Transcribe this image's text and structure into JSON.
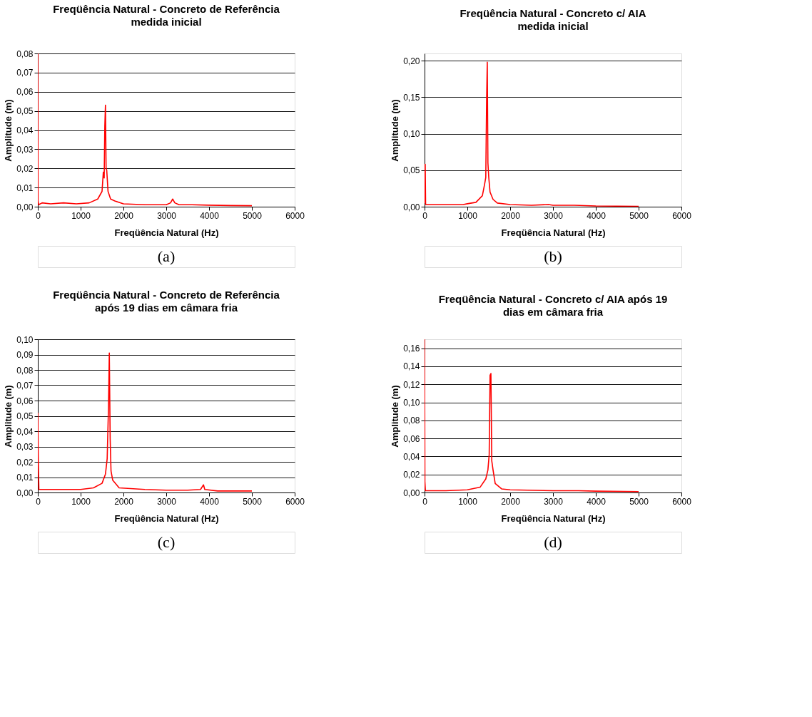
{
  "chart_data": [
    {
      "type": "line",
      "title": "Freqüência Natural  - Concreto de Referência",
      "subtitle": "medida inicial",
      "xlabel": "Freqüência Natural (Hz)",
      "ylabel": "Amplitude (m)",
      "annotations": [
        "(a)"
      ],
      "grid": "y",
      "xlim": [
        0,
        6000
      ],
      "xticks": [
        0,
        1000,
        2000,
        3000,
        4000,
        5000,
        6000
      ],
      "ylim": [
        0,
        0.08
      ],
      "yticks": [
        {
          "value": 0,
          "label": "0,00"
        },
        {
          "value": 0.01,
          "label": "0,01"
        },
        {
          "value": 0.02,
          "label": "0,02"
        },
        {
          "value": 0.03,
          "label": "0,03"
        },
        {
          "value": 0.04,
          "label": "0,04"
        },
        {
          "value": 0.05,
          "label": "0,05"
        },
        {
          "value": 0.06,
          "label": "0,06"
        },
        {
          "value": 0.07,
          "label": "0,07"
        },
        {
          "value": 0.08,
          "label": "0,08"
        }
      ],
      "series": [
        {
          "color": "#ff0000",
          "x": [
            0,
            5,
            20,
            100,
            300,
            600,
            900,
            1200,
            1400,
            1500,
            1530,
            1550,
            1565,
            1580,
            1595,
            1610,
            1640,
            1700,
            1800,
            2000,
            2500,
            3000,
            3100,
            3150,
            3200,
            3300,
            3600,
            4000,
            4500,
            5000
          ],
          "values": [
            0.08,
            0.003,
            0.001,
            0.002,
            0.0015,
            0.002,
            0.0015,
            0.002,
            0.004,
            0.008,
            0.018,
            0.015,
            0.042,
            0.053,
            0.02,
            0.019,
            0.008,
            0.004,
            0.003,
            0.0015,
            0.001,
            0.001,
            0.002,
            0.004,
            0.002,
            0.001,
            0.001,
            0.0008,
            0.0006,
            0.0005
          ]
        }
      ]
    },
    {
      "type": "line",
      "title": "Freqüência Natural  - Concreto c/ AIA",
      "subtitle": "medida inicial",
      "xlabel": "Freqüência Natural (Hz)",
      "ylabel": "Amplitude (m)",
      "annotations": [
        "(b)"
      ],
      "grid": "y",
      "xlim": [
        0,
        6000
      ],
      "xticks": [
        0,
        1000,
        2000,
        3000,
        4000,
        5000,
        6000
      ],
      "ylim": [
        0,
        0.21
      ],
      "yticks": [
        {
          "value": 0,
          "label": "0,00"
        },
        {
          "value": 0.05,
          "label": "0,05"
        },
        {
          "value": 0.1,
          "label": "0,10"
        },
        {
          "value": 0.15,
          "label": "0,15"
        },
        {
          "value": 0.2,
          "label": "0,20"
        }
      ],
      "series": [
        {
          "color": "#ff0000",
          "x": [
            0,
            15,
            25,
            300,
            900,
            1000,
            1200,
            1350,
            1400,
            1430,
            1450,
            1465,
            1480,
            1500,
            1530,
            1600,
            1700,
            2000,
            2500,
            2900,
            3000,
            3500,
            4000,
            4500,
            5000
          ],
          "values": [
            0.005,
            0.058,
            0.003,
            0.003,
            0.003,
            0.004,
            0.006,
            0.015,
            0.03,
            0.04,
            0.147,
            0.198,
            0.06,
            0.04,
            0.02,
            0.01,
            0.005,
            0.003,
            0.002,
            0.003,
            0.002,
            0.002,
            0.001,
            0.0008,
            0.0005
          ]
        }
      ]
    },
    {
      "type": "line",
      "title": "Freqüência Natural  - Concreto de Referência",
      "subtitle": "após 19 dias em câmara fria",
      "xlabel": "Freqüência Natural (Hz)",
      "ylabel": "Amplitude (m)",
      "annotations": [
        "(c)"
      ],
      "grid": "y",
      "xlim": [
        0,
        6000
      ],
      "xticks": [
        0,
        1000,
        2000,
        3000,
        4000,
        5000,
        6000
      ],
      "ylim": [
        0,
        0.1
      ],
      "yticks": [
        {
          "value": 0,
          "label": "0,00"
        },
        {
          "value": 0.01,
          "label": "0,01"
        },
        {
          "value": 0.02,
          "label": "0,02"
        },
        {
          "value": 0.03,
          "label": "0,03"
        },
        {
          "value": 0.04,
          "label": "0,04"
        },
        {
          "value": 0.05,
          "label": "0,05"
        },
        {
          "value": 0.06,
          "label": "0,06"
        },
        {
          "value": 0.07,
          "label": "0,07"
        },
        {
          "value": 0.08,
          "label": "0,08"
        },
        {
          "value": 0.09,
          "label": "0,09"
        },
        {
          "value": 0.1,
          "label": "0,10"
        }
      ],
      "series": [
        {
          "color": "#ff0000",
          "x": [
            0,
            10,
            25,
            500,
            1000,
            1300,
            1500,
            1580,
            1620,
            1650,
            1670,
            1690,
            1710,
            1750,
            1900,
            2500,
            3000,
            3500,
            3800,
            3870,
            3900,
            4200,
            5000
          ],
          "values": [
            0.052,
            0.023,
            0.002,
            0.002,
            0.002,
            0.003,
            0.006,
            0.012,
            0.022,
            0.055,
            0.091,
            0.035,
            0.014,
            0.008,
            0.003,
            0.002,
            0.0015,
            0.0015,
            0.002,
            0.005,
            0.002,
            0.001,
            0.001
          ]
        }
      ]
    },
    {
      "type": "line",
      "title": "Freqüência Natural  - Concreto c/ AIA após 19",
      "subtitle": "dias em câmara fria",
      "xlabel": "Freqüência Natural (Hz)",
      "ylabel": "Amplitude (m)",
      "annotations": [
        "(d)"
      ],
      "grid": "y",
      "xlim": [
        0,
        6000
      ],
      "xticks": [
        0,
        1000,
        2000,
        3000,
        4000,
        5000,
        6000
      ],
      "ylim": [
        0,
        0.17
      ],
      "yticks": [
        {
          "value": 0,
          "label": "0,00"
        },
        {
          "value": 0.02,
          "label": "0,02"
        },
        {
          "value": 0.04,
          "label": "0,04"
        },
        {
          "value": 0.06,
          "label": "0,06"
        },
        {
          "value": 0.08,
          "label": "0,08"
        },
        {
          "value": 0.1,
          "label": "0,10"
        },
        {
          "value": 0.12,
          "label": "0,12"
        },
        {
          "value": 0.14,
          "label": "0,14"
        },
        {
          "value": 0.16,
          "label": "0,16"
        }
      ],
      "series": [
        {
          "color": "#ff0000",
          "x": [
            0,
            8,
            20,
            500,
            1000,
            1300,
            1430,
            1480,
            1510,
            1530,
            1550,
            1570,
            1600,
            1650,
            1800,
            2000,
            3000,
            3600,
            4000,
            5000
          ],
          "values": [
            0.17,
            0.012,
            0.002,
            0.002,
            0.003,
            0.006,
            0.015,
            0.025,
            0.042,
            0.13,
            0.132,
            0.035,
            0.025,
            0.01,
            0.004,
            0.003,
            0.002,
            0.002,
            0.0015,
            0.001
          ]
        }
      ]
    }
  ]
}
